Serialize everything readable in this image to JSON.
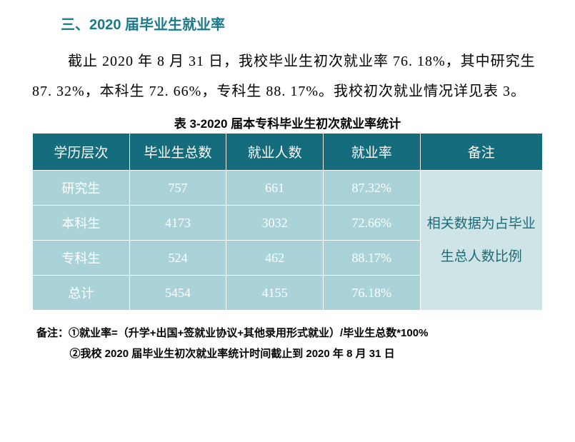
{
  "heading": "三、2020 届毕业生就业率",
  "paragraph": "截止 2020 年 8 月 31 日，我校毕业生初次就业率 76. 18%，其中研究生 87. 32%，本科生 72. 66%，专科生 88. 17%。我校初次就业情况详见表 3。",
  "table": {
    "caption": "表 3-2020 届本专科毕业生初次就业率统计",
    "columns": [
      "学历层次",
      "毕业生总数",
      "就业人数",
      "就业率",
      "备注"
    ],
    "rows": [
      [
        "研究生",
        "757",
        "661",
        "87.32%"
      ],
      [
        "本科生",
        "4173",
        "3032",
        "72.66%"
      ],
      [
        "专科生",
        "524",
        "462",
        "88.17%"
      ],
      [
        "总计",
        "5454",
        "4155",
        "76.18%"
      ]
    ],
    "remark": "相关数据为占毕业生总人数比例",
    "header_bg": "#146c7d",
    "header_text": "#ffffff",
    "cell_bg": "#a9d3d8",
    "cell_text": "#ffffff",
    "remark_bg": "#cfe4e7",
    "remark_text": "#1a6b78",
    "border_color": "#ffffff",
    "col_widths": [
      "19%",
      "19%",
      "19%",
      "19%",
      "24%"
    ]
  },
  "footnotes": [
    "备注：①就业率=（升学+出国+签就业协议+其他录用形式就业）/毕业生总数*100%",
    "②我校 2020 届毕业生初次就业率统计时间截止到 2020 年 8 月 31 日"
  ]
}
